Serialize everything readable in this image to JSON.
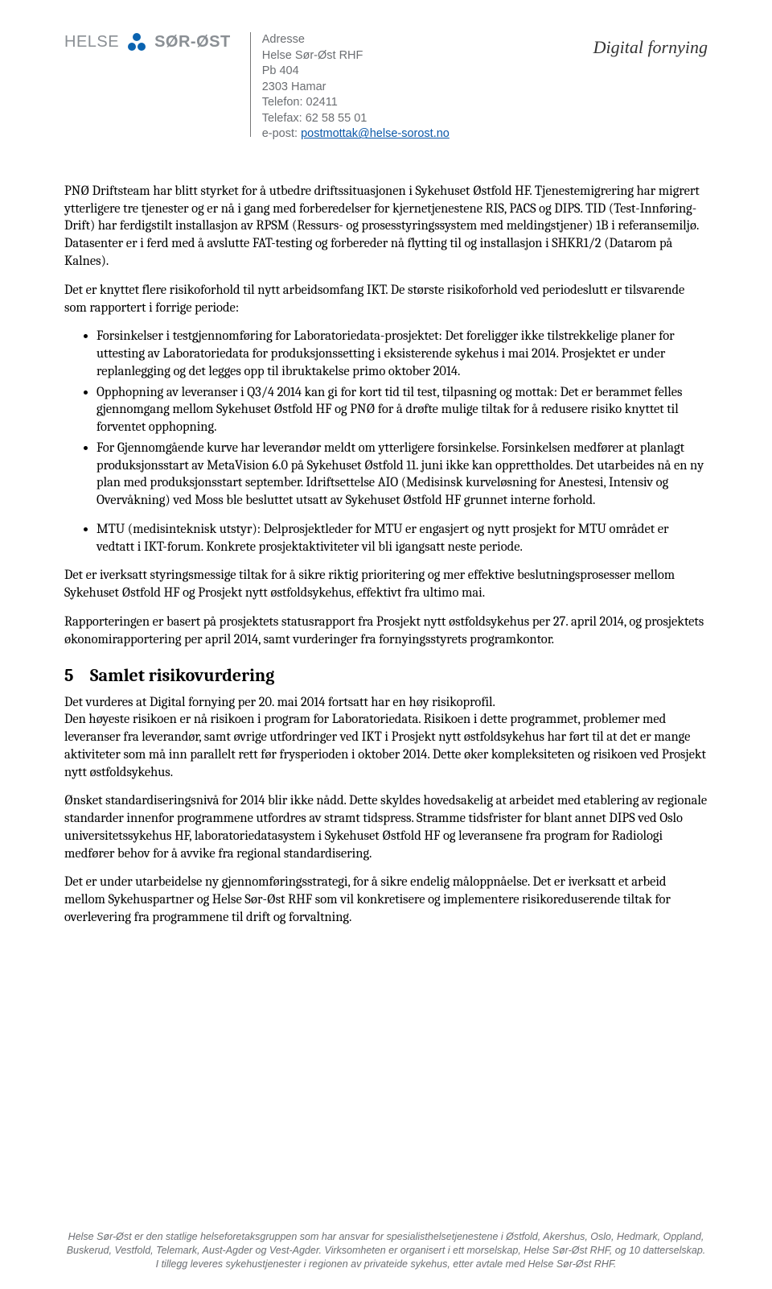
{
  "header": {
    "logo_left": "HELSE",
    "logo_right": "SØR-ØST",
    "address": {
      "l1": "Adresse",
      "l2": "Helse Sør-Øst RHF",
      "l3": "Pb 404",
      "l4": "2303 Hamar",
      "l5": "Telefon: 02411",
      "l6": "Telefax: 62 58 55 01",
      "l7_prefix": "e-post: ",
      "l7_link": "postmottak@helse-sorost.no"
    },
    "right_title": "Digital fornying"
  },
  "para1": "PNØ Driftsteam har blitt styrket for å utbedre driftssituasjonen i Sykehuset Østfold HF. Tjenestemigrering har migrert ytterligere tre tjenester og er nå i gang med forberedelser for kjernetjenestene RIS, PACS og DIPS. TID (Test-Innføring-Drift) har ferdigstilt installasjon av RPSM (Ressurs- og prosesstyringssystem med meldingstjener) 1B i referansemiljø. Datasenter er i ferd med å avslutte FAT-testing og forbereder nå flytting til og installasjon i SHKR1/2 (Datarom på Kalnes).",
  "para2": "Det er knyttet flere risikoforhold til nytt arbeidsomfang IKT. De største risikoforhold ved periodeslutt er tilsvarende som rapportert i forrige periode:",
  "bullets1": [
    "Forsinkelser i testgjennomføring for Laboratoriedata-prosjektet: Det foreligger ikke tilstrekkelige planer for uttesting av Laboratoriedata for produksjonssetting i eksisterende sykehus i mai 2014. Prosjektet er under replanlegging og det legges opp til ibruktakelse primo oktober 2014.",
    "Opphopning av leveranser i Q3/4 2014 kan gi for kort tid til test, tilpasning og mottak: Det er berammet felles gjennomgang mellom Sykehuset Østfold HF og PNØ for å drøfte mulige tiltak for å redusere risiko knyttet til forventet opphopning.",
    "For Gjennomgående kurve har leverandør meldt om ytterligere forsinkelse. Forsinkelsen medfører at planlagt produksjonsstart av MetaVision 6.0 på Sykehuset Østfold 11. juni ikke kan opprettholdes. Det utarbeides nå en ny plan med produksjonsstart september. Idriftsettelse AIO (Medisinsk kurveløsning for Anestesi, Intensiv og Overvåkning) ved Moss ble besluttet utsatt av Sykehuset Østfold HF grunnet interne forhold."
  ],
  "bullets2": [
    "MTU (medisinteknisk utstyr): Delprosjektleder for MTU er engasjert og nytt prosjekt for MTU området er vedtatt i IKT-forum. Konkrete prosjektaktiviteter vil bli igangsatt neste periode."
  ],
  "para3": "Det er iverksatt styringsmessige tiltak for å sikre riktig prioritering og mer effektive beslutningsprosesser mellom Sykehuset Østfold HF og Prosjekt nytt østfoldsykehus, effektivt fra ultimo mai.",
  "para4": "Rapporteringen er basert på prosjektets statusrapport fra Prosjekt nytt østfoldsykehus per 27. april 2014, og prosjektets økonomirapportering per april 2014, samt vurderinger fra fornyingsstyrets programkontor.",
  "section5": {
    "num": "5",
    "title": "Samlet risikovurdering"
  },
  "para5": "Det vurderes at Digital fornying per 20. mai 2014 fortsatt har en høy risikoprofil.\nDen høyeste risikoen er nå risikoen i program for Laboratoriedata. Risikoen i dette programmet, problemer med leveranser fra leverandør, samt øvrige utfordringer ved IKT i Prosjekt nytt østfoldsykehus har ført til at det er mange aktiviteter som må inn parallelt rett før frysperioden i oktober 2014. Dette øker kompleksiteten og risikoen ved Prosjekt nytt østfoldsykehus.",
  "para6": "Ønsket standardiseringsnivå for 2014 blir ikke nådd. Dette skyldes hovedsakelig at arbeidet med etablering av regionale standarder innenfor programmene utfordres av stramt tidspress. Stramme tidsfrister for blant annet DIPS ved Oslo universitetssykehus HF, laboratoriedatasystem i Sykehuset Østfold HF og leveransene fra program for Radiologi medfører behov for å avvike fra regional standardisering.",
  "para7": "Det er under utarbeidelse ny gjennomføringsstrategi, for å sikre endelig måloppnåelse. Det er iverksatt et arbeid mellom Sykehuspartner og Helse Sør-Øst RHF som vil konkretisere og implementere risikoreduserende tiltak for overlevering fra programmene til drift og forvaltning.",
  "footer": "Helse Sør-Øst er den statlige helseforetaksgruppen som har ansvar for spesialisthelsetjenestene i Østfold, Akershus, Oslo, Hedmark, Oppland, Buskerud, Vestfold, Telemark, Aust-Agder og Vest-Agder. Virksomheten er organisert i ett morselskap, Helse Sør-Øst RHF, og 10 datterselskap. I tillegg leveres sykehustjenester i regionen av privateide sykehus, etter avtale med Helse Sør-Øst RHF."
}
